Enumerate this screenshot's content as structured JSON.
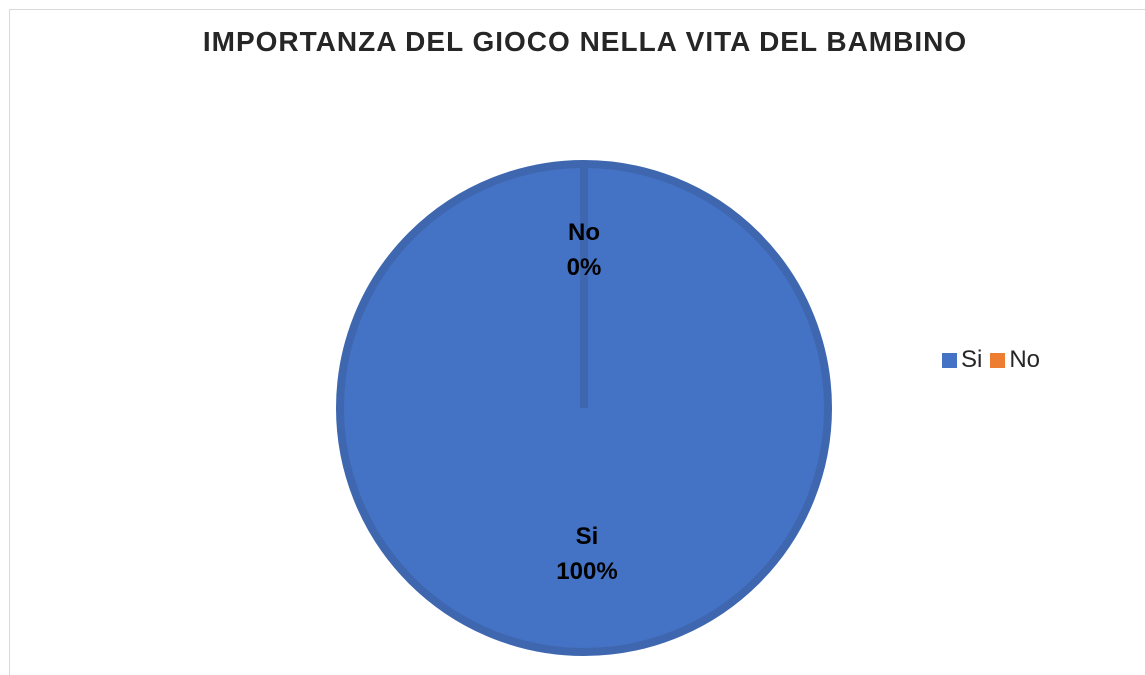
{
  "chart_data": {
    "type": "pie",
    "title": "IMPORTANZA DEL GIOCO NELLA VITA DEL BAMBINO",
    "slices": [
      {
        "name": "Si",
        "value": 100,
        "label": "100%",
        "color": "#4472c4"
      },
      {
        "name": "No",
        "value": 0,
        "label": "0%",
        "color": "#ed7d31"
      }
    ],
    "legend": {
      "position": "right",
      "entries": [
        "Si",
        "No"
      ]
    }
  }
}
